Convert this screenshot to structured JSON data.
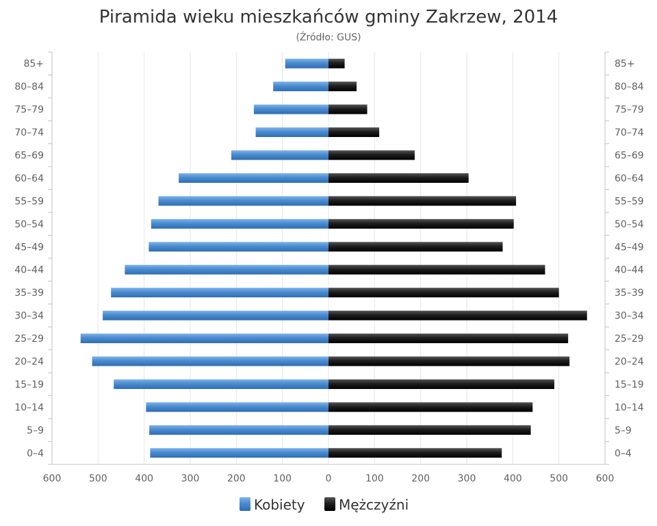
{
  "chart_data": {
    "type": "bar",
    "orientation": "horizontal-pyramid",
    "title": "Piramida wieku mieszkańców gminy Zakrzew, 2014",
    "subtitle": "(Źródło: GUS)",
    "categories": [
      "85+",
      "80–84",
      "75–79",
      "70–74",
      "65–69",
      "60–64",
      "55–59",
      "50–54",
      "45–49",
      "40–44",
      "35–39",
      "30–34",
      "25–29",
      "20–24",
      "15–19",
      "10–14",
      "5–9",
      "0–4"
    ],
    "series": [
      {
        "name": "Kobiety",
        "color": "#4a8bd0",
        "side": "left",
        "values": [
          94,
          120,
          162,
          158,
          211,
          325,
          369,
          385,
          390,
          442,
          472,
          490,
          538,
          513,
          466,
          396,
          389,
          387
        ]
      },
      {
        "name": "Mężczyźni",
        "color": "#222222",
        "side": "right",
        "values": [
          35,
          61,
          84,
          110,
          187,
          304,
          407,
          402,
          378,
          470,
          500,
          561,
          520,
          523,
          490,
          443,
          439,
          376
        ]
      }
    ],
    "xlim": [
      -600,
      600
    ],
    "x_ticks": [
      "600",
      "500",
      "400",
      "300",
      "200",
      "100",
      "0",
      "100",
      "200",
      "300",
      "400",
      "500",
      "600"
    ],
    "grid": true,
    "legend": "bottom-center"
  }
}
